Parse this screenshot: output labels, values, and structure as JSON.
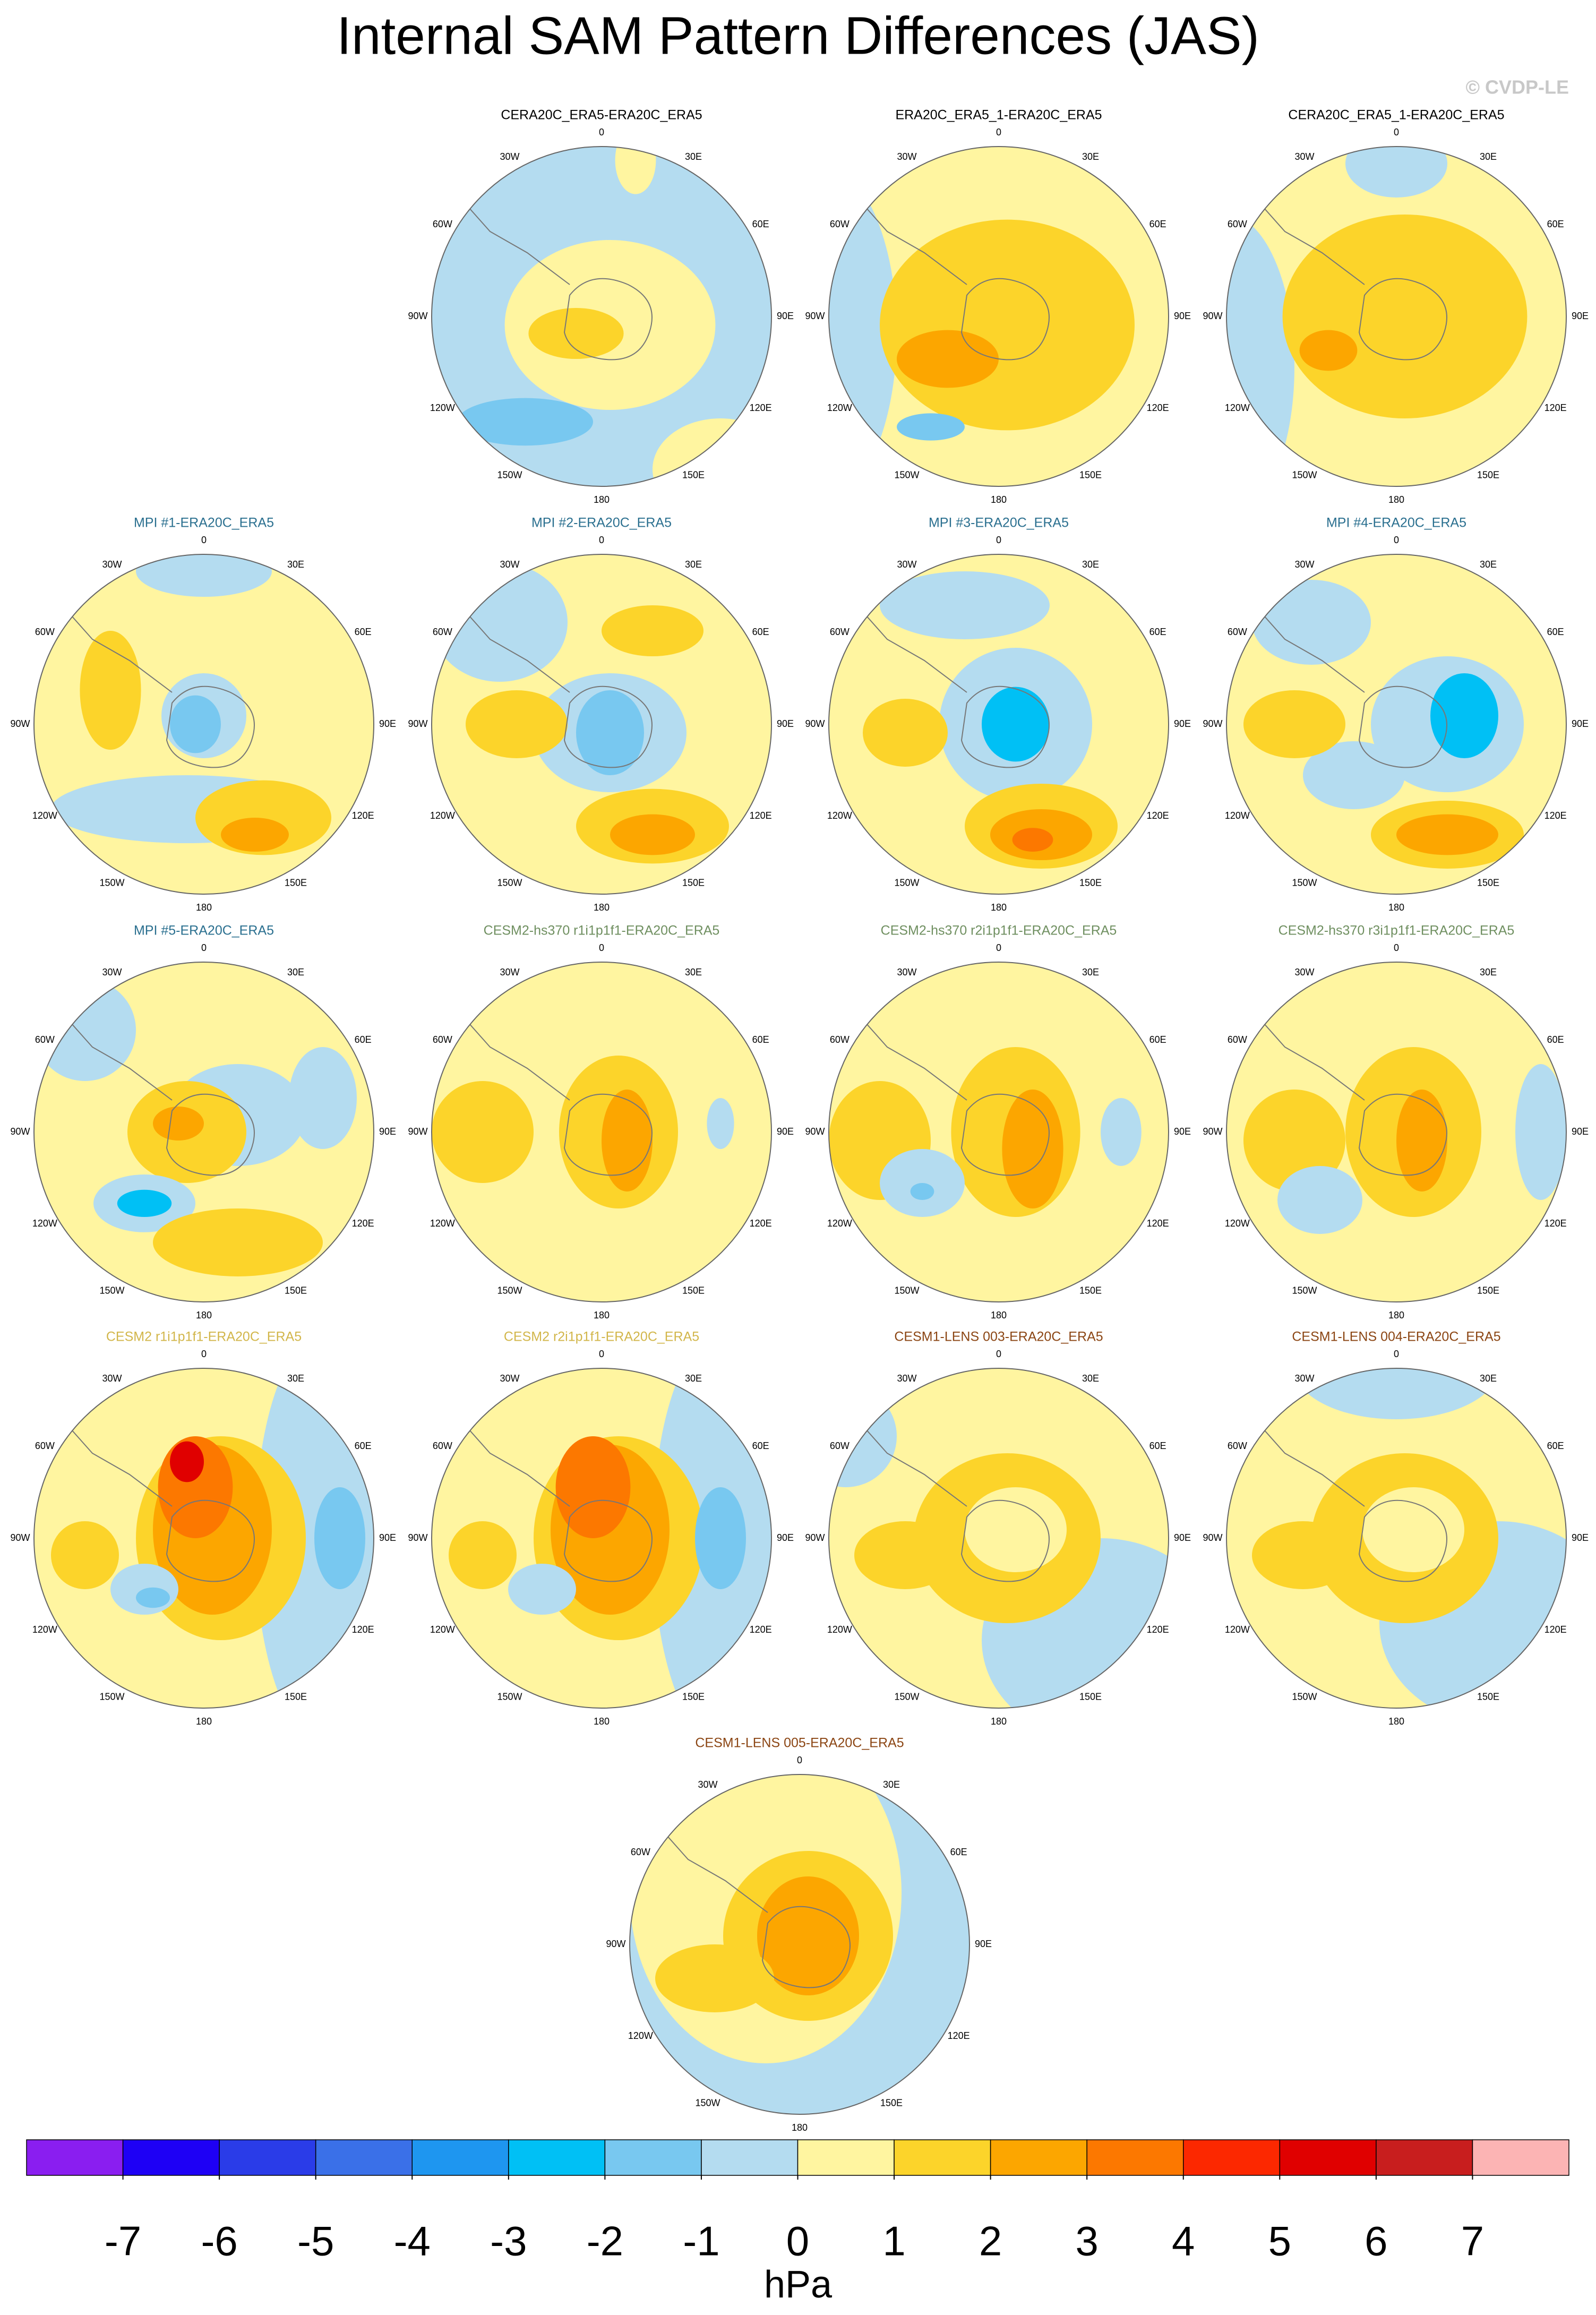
{
  "title": "Internal SAM Pattern Differences (JAS)",
  "credit": "© CVDP-LE",
  "lon_labels": [
    "0",
    "30E",
    "60E",
    "90E",
    "120E",
    "150E",
    "180",
    "150W",
    "120W",
    "90W",
    "60W",
    "30W"
  ],
  "panels": [
    {
      "title": "CERA20C_ERA5-ERA20C_ERA5",
      "color": "#000000"
    },
    {
      "title": "ERA20C_ERA5_1-ERA20C_ERA5",
      "color": "#000000"
    },
    {
      "title": "CERA20C_ERA5_1-ERA20C_ERA5",
      "color": "#000000"
    },
    {
      "title": "MPI #1-ERA20C_ERA5",
      "color": "#2a6f8f"
    },
    {
      "title": "MPI #2-ERA20C_ERA5",
      "color": "#2a6f8f"
    },
    {
      "title": "MPI #3-ERA20C_ERA5",
      "color": "#2a6f8f"
    },
    {
      "title": "MPI #4-ERA20C_ERA5",
      "color": "#2a6f8f"
    },
    {
      "title": "MPI #5-ERA20C_ERA5",
      "color": "#2a6f8f"
    },
    {
      "title": "CESM2-hs370 r1i1p1f1-ERA20C_ERA5",
      "color": "#6f8f60"
    },
    {
      "title": "CESM2-hs370 r2i1p1f1-ERA20C_ERA5",
      "color": "#6f8f60"
    },
    {
      "title": "CESM2-hs370 r3i1p1f1-ERA20C_ERA5",
      "color": "#6f8f60"
    },
    {
      "title": "CESM2 r1i1p1f1-ERA20C_ERA5",
      "color": "#d2b64a"
    },
    {
      "title": "CESM2 r2i1p1f1-ERA20C_ERA5",
      "color": "#d2b64a"
    },
    {
      "title": "CESM1-LENS 003-ERA20C_ERA5",
      "color": "#8b4513"
    },
    {
      "title": "CESM1-LENS 004-ERA20C_ERA5",
      "color": "#8b4513"
    },
    {
      "title": "CESM1-LENS 005-ERA20C_ERA5",
      "color": "#8b4513"
    }
  ],
  "colorbar": {
    "colors": [
      "#8a1ef0",
      "#1e00f5",
      "#2a3ce8",
      "#3a70e8",
      "#1e96f0",
      "#00c0f5",
      "#78c8f0",
      "#b4dcf0",
      "#fff5a0",
      "#fcd42a",
      "#fca600",
      "#fc7800",
      "#fc2800",
      "#e00000",
      "#c81e1e",
      "#fcb4b4"
    ],
    "ticks": [
      -7,
      -6,
      -5,
      -4,
      -3,
      -2,
      -1,
      0,
      1,
      2,
      3,
      4,
      5,
      6,
      7
    ],
    "label": "hPa"
  }
}
